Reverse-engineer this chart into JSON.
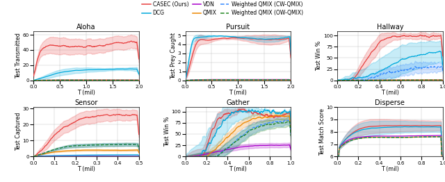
{
  "colors": {
    "casec": "#e84040",
    "dcg": "#00aadd",
    "vdn": "#aa00cc",
    "qmix": "#ee8800",
    "cw": "#3388ff",
    "ow": "#228822"
  },
  "subplots": [
    {
      "title": "Aloha",
      "xlabel": "T (mil)",
      "ylabel": "Test Transmitted",
      "xlim": [
        0,
        2.0
      ],
      "ylim": [
        0,
        65
      ],
      "yticks": [
        0,
        20,
        40,
        60
      ],
      "xticks": [
        0.0,
        0.5,
        1.0,
        1.5,
        2.0
      ]
    },
    {
      "title": "Pursuit",
      "xlabel": "T (mil)",
      "ylabel": "Test Prey Caught",
      "xlim": [
        0,
        2.0
      ],
      "ylim": [
        0,
        5.5
      ],
      "yticks": [
        0,
        1,
        2,
        3,
        4,
        5
      ],
      "xticks": [
        0.0,
        0.5,
        1.0,
        1.5,
        2.0
      ]
    },
    {
      "title": "Hallway",
      "xlabel": "T (mil)",
      "ylabel": "Test Win %",
      "xlim": [
        0,
        1.0
      ],
      "ylim": [
        0,
        110
      ],
      "yticks": [
        0,
        25,
        50,
        75,
        100
      ],
      "xticks": [
        0.0,
        0.2,
        0.4,
        0.6,
        0.8,
        1.0
      ]
    },
    {
      "title": "Sensor",
      "xlabel": "T (mil)",
      "ylabel": "Test Captured",
      "xlim": [
        0,
        0.5
      ],
      "ylim": [
        0,
        31
      ],
      "yticks": [
        0,
        10,
        20,
        30
      ],
      "xticks": [
        0.0,
        0.1,
        0.2,
        0.3,
        0.4,
        0.5
      ]
    },
    {
      "title": "Gather",
      "xlabel": "T (mil)",
      "ylabel": "Test Win %",
      "xlim": [
        0,
        1.0
      ],
      "ylim": [
        0,
        110
      ],
      "yticks": [
        0,
        25,
        50,
        75,
        100
      ],
      "xticks": [
        0.0,
        0.2,
        0.4,
        0.6,
        0.8,
        1.0
      ]
    },
    {
      "title": "Disperse",
      "xlabel": "T (mil)",
      "ylabel": "Test Match Score",
      "xlim": [
        0,
        1.0
      ],
      "ylim": [
        6,
        10
      ],
      "yticks": [
        6,
        7,
        8,
        9,
        10
      ],
      "xticks": [
        0.0,
        0.2,
        0.4,
        0.6,
        0.8,
        1.0
      ]
    }
  ],
  "legend": [
    {
      "label": "CASEC (Ours)",
      "color": "#e84040",
      "ls": "-"
    },
    {
      "label": "DCG",
      "color": "#00aadd",
      "ls": "-"
    },
    {
      "label": "VDN",
      "color": "#aa00cc",
      "ls": "-"
    },
    {
      "label": "QMIX",
      "color": "#ee8800",
      "ls": "-"
    },
    {
      "label": "Weighted QMIX (CW-QMIX)",
      "color": "#3388ff",
      "ls": "--"
    },
    {
      "label": "Weighted QMIX (OW-QMIX)",
      "color": "#228822",
      "ls": "--"
    }
  ]
}
